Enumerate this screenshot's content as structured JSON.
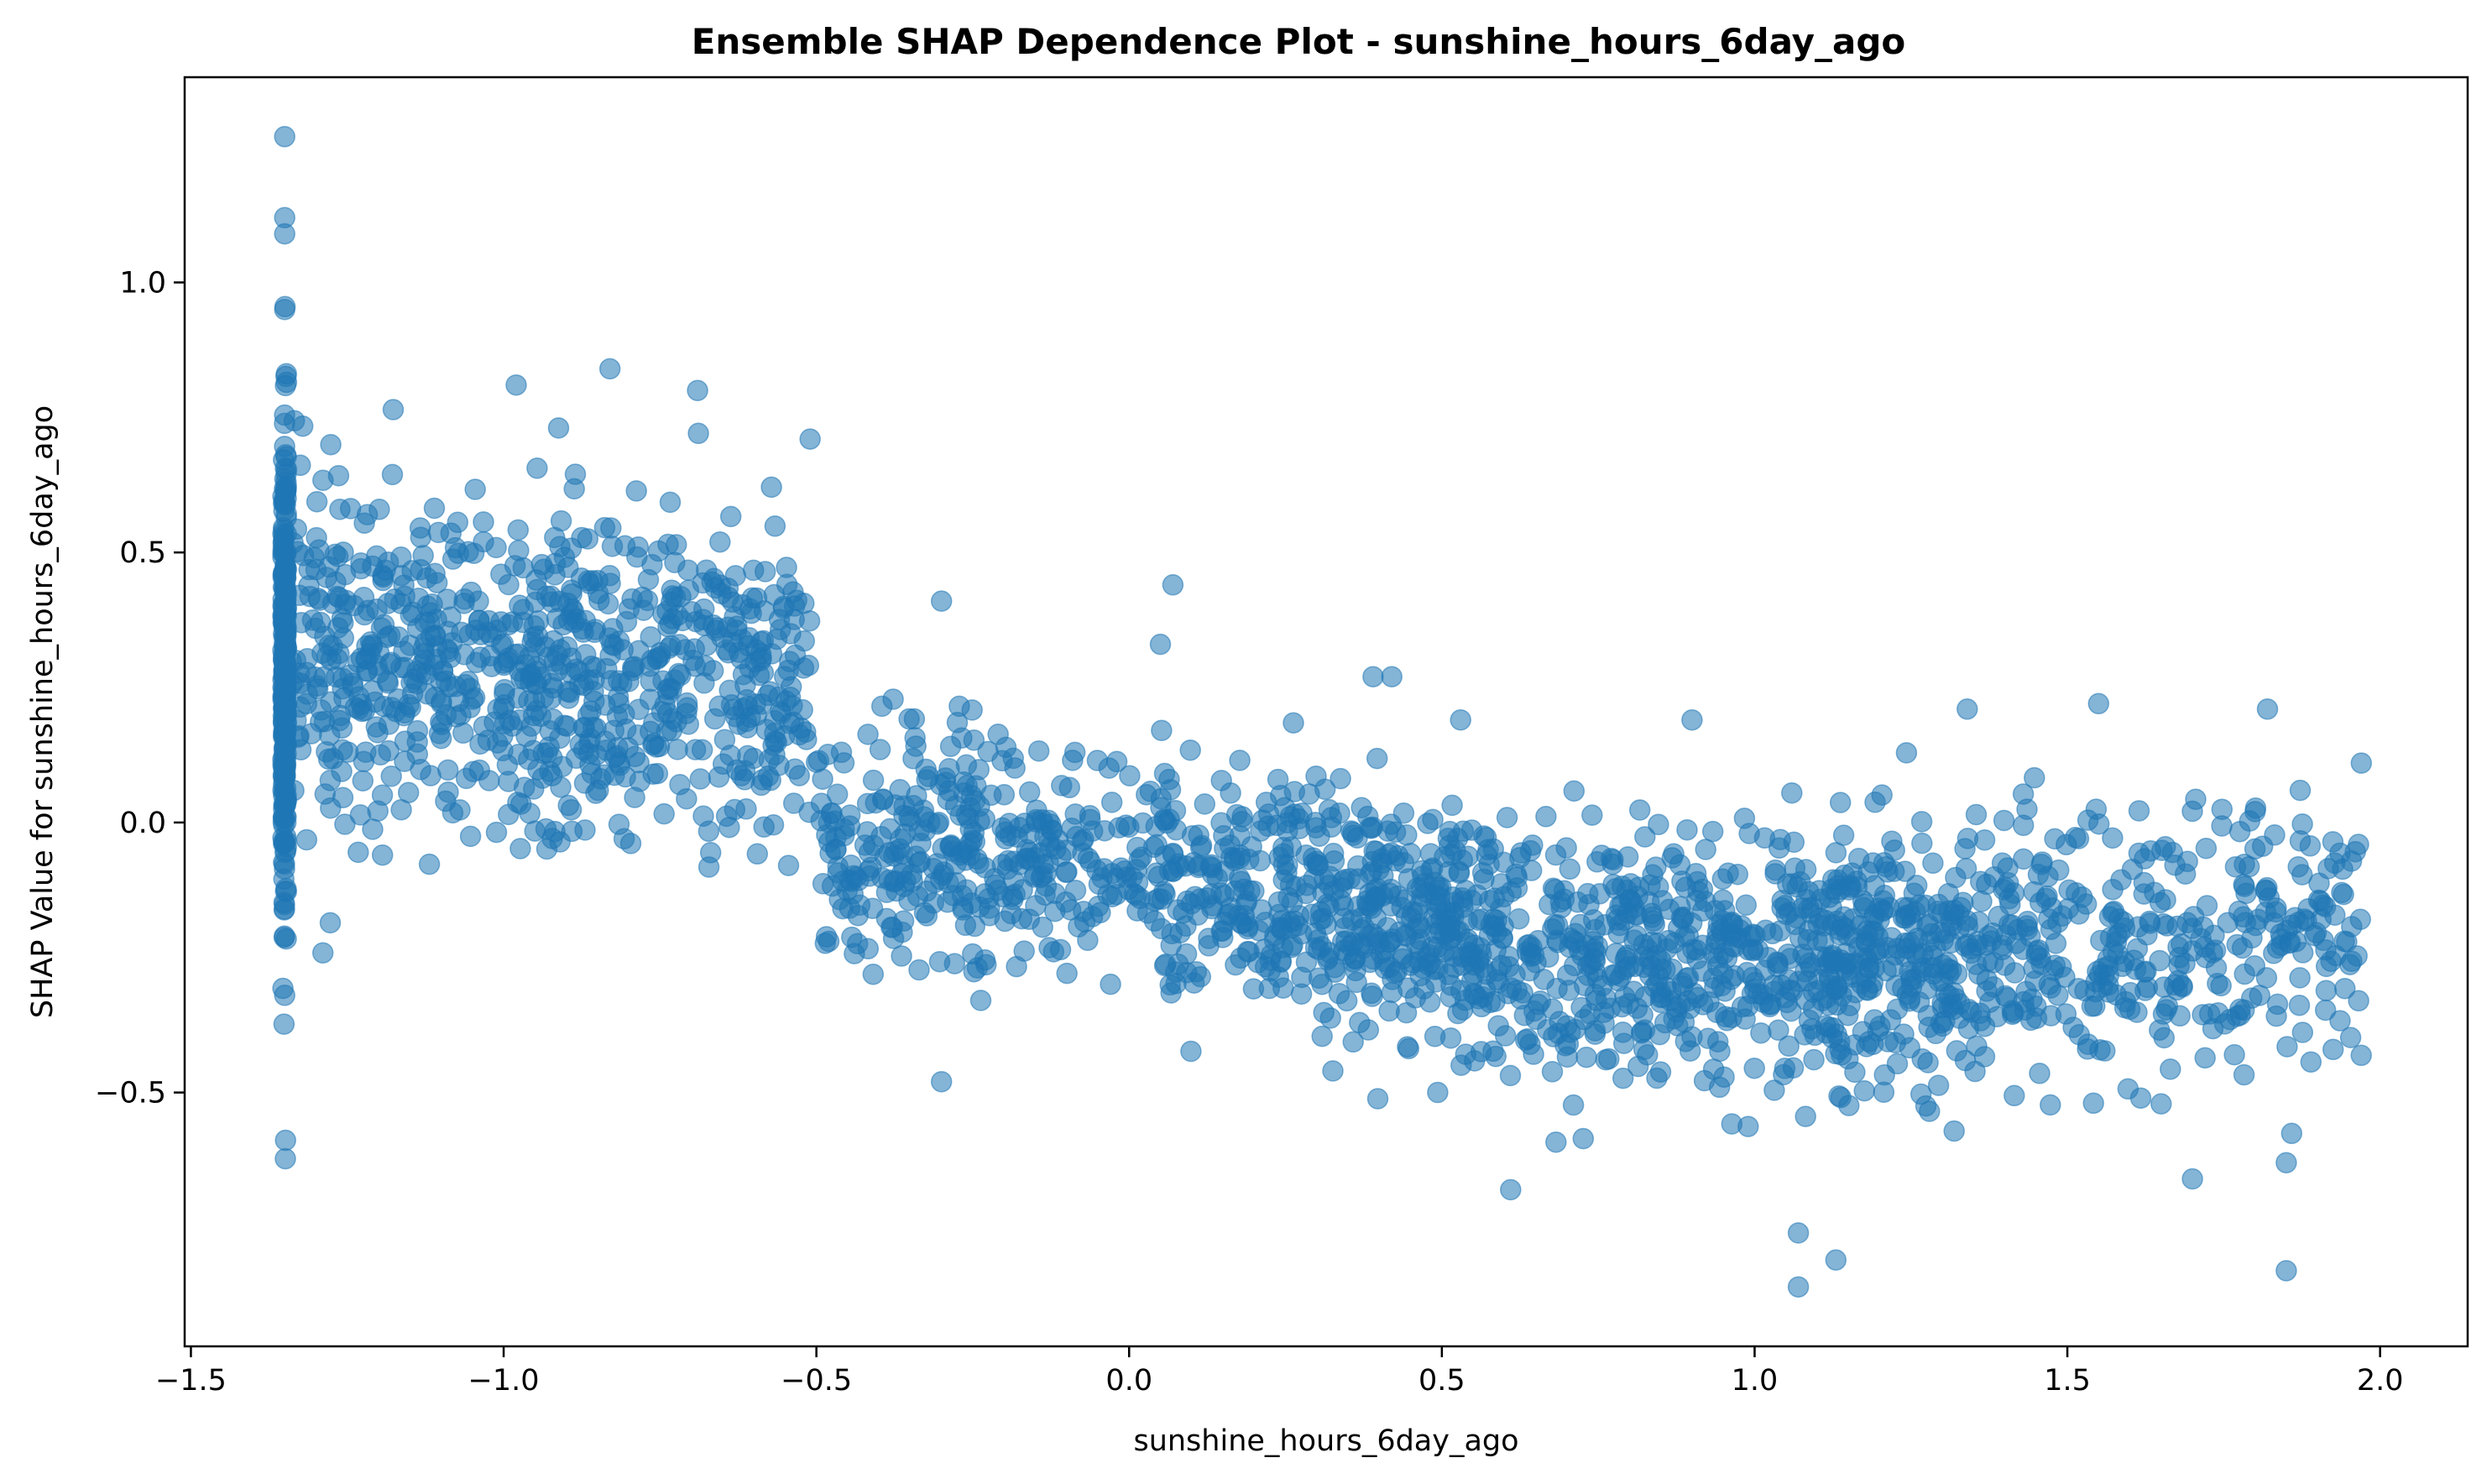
{
  "chart_data": {
    "type": "scatter",
    "title": "Ensemble SHAP Dependence Plot - sunshine_hours_6day_ago",
    "xlabel": "sunshine_hours_6day_ago",
    "ylabel": "SHAP Value for sunshine_hours_6day_ago",
    "xlim": [
      -1.51,
      2.14
    ],
    "ylim": [
      -0.97,
      1.38
    ],
    "x_ticks": [
      -1.5,
      -1.0,
      -0.5,
      0.0,
      0.5,
      1.0,
      1.5,
      2.0
    ],
    "x_tick_labels": [
      "−1.5",
      "−1.0",
      "−0.5",
      "0.0",
      "0.5",
      "1.0",
      "1.5",
      "2.0"
    ],
    "y_ticks": [
      -0.5,
      0.0,
      0.5,
      1.0
    ],
    "y_tick_labels": [
      "−0.5",
      "0.0",
      "0.5",
      "1.0"
    ],
    "grid": false,
    "marker_color": "#1f77b4",
    "marker_alpha": 0.55,
    "approximate_point_count": 3000,
    "trend": [
      {
        "x": -1.35,
        "y_center": 0.3,
        "y_spread": 0.28
      },
      {
        "x": -1.2,
        "y_center": 0.33,
        "y_spread": 0.18
      },
      {
        "x": -1.0,
        "y_center": 0.3,
        "y_spread": 0.2
      },
      {
        "x": -0.75,
        "y_center": 0.3,
        "y_spread": 0.2
      },
      {
        "x": -0.52,
        "y_center": 0.25,
        "y_spread": 0.18
      },
      {
        "x": -0.5,
        "y_center": -0.05,
        "y_spread": 0.15
      },
      {
        "x": 0.0,
        "y_center": -0.08,
        "y_spread": 0.14
      },
      {
        "x": 0.5,
        "y_center": -0.2,
        "y_spread": 0.15
      },
      {
        "x": 0.9,
        "y_center": -0.27,
        "y_spread": 0.16
      },
      {
        "x": 1.2,
        "y_center": -0.24,
        "y_spread": 0.17
      },
      {
        "x": 1.6,
        "y_center": -0.22,
        "y_spread": 0.17
      },
      {
        "x": 1.97,
        "y_center": -0.2,
        "y_spread": 0.17
      }
    ],
    "notable_points": [
      {
        "x": -1.35,
        "y": 1.27
      },
      {
        "x": -1.35,
        "y": 1.12
      },
      {
        "x": -1.35,
        "y": 1.09
      },
      {
        "x": -1.35,
        "y": 0.95
      },
      {
        "x": -1.35,
        "y": -0.32
      },
      {
        "x": -0.83,
        "y": 0.84
      },
      {
        "x": -0.98,
        "y": 0.81
      },
      {
        "x": -0.69,
        "y": 0.8
      },
      {
        "x": -0.51,
        "y": 0.71
      },
      {
        "x": -0.3,
        "y": 0.41
      },
      {
        "x": -0.3,
        "y": -0.48
      },
      {
        "x": 0.07,
        "y": 0.44
      },
      {
        "x": 0.05,
        "y": 0.33
      },
      {
        "x": 0.39,
        "y": 0.27
      },
      {
        "x": 0.42,
        "y": 0.27
      },
      {
        "x": 0.53,
        "y": 0.19
      },
      {
        "x": 0.9,
        "y": 0.19
      },
      {
        "x": 1.34,
        "y": 0.21
      },
      {
        "x": 1.55,
        "y": 0.22
      },
      {
        "x": 1.82,
        "y": 0.21
      },
      {
        "x": 1.97,
        "y": 0.11
      },
      {
        "x": 1.07,
        "y": -0.86
      },
      {
        "x": 1.85,
        "y": -0.83
      },
      {
        "x": 1.13,
        "y": -0.81
      },
      {
        "x": 1.07,
        "y": -0.76
      },
      {
        "x": 0.61,
        "y": -0.68
      },
      {
        "x": 1.7,
        "y": -0.66
      },
      {
        "x": 1.85,
        "y": -0.63
      }
    ]
  }
}
